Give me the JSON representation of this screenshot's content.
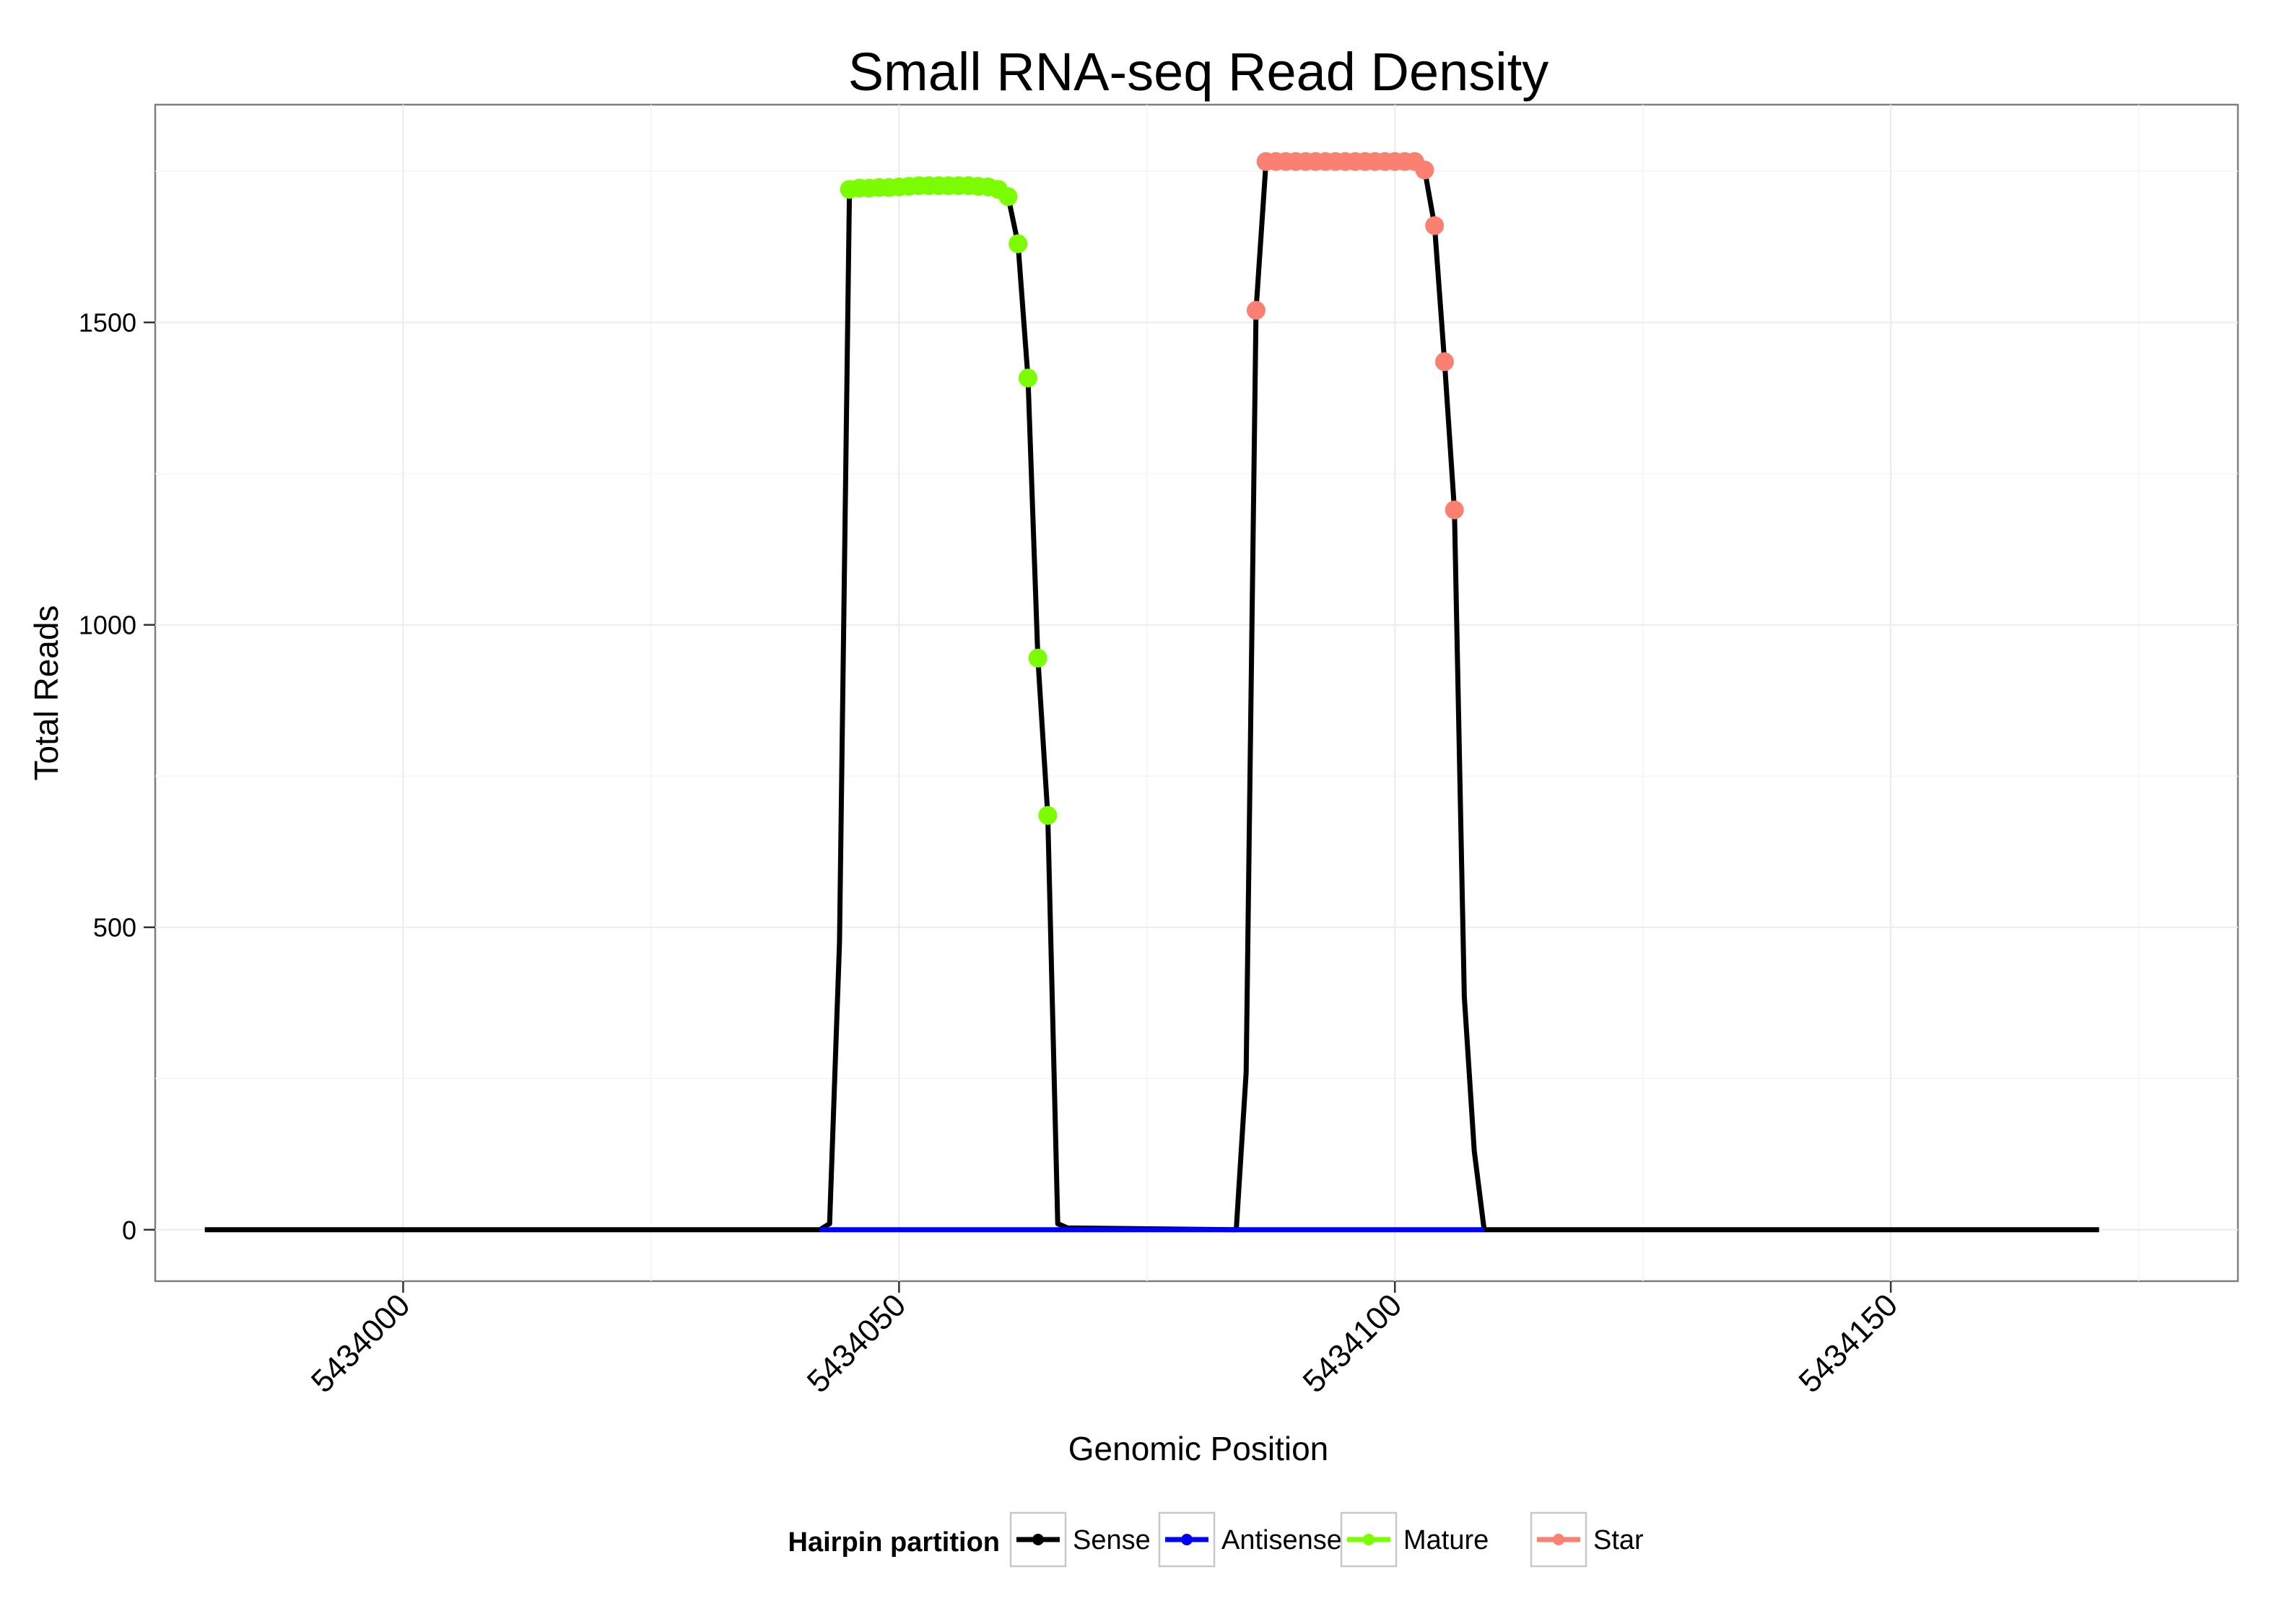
{
  "chart_data": {
    "type": "line",
    "title": "Small RNA-seq Read Density",
    "xlabel": "Genomic Position",
    "ylabel": "Total Reads",
    "xlim": [
      5433975,
      5434185
    ],
    "ylim": [
      -85,
      1860
    ],
    "x_ticks": [
      5434000,
      5434050,
      5434100,
      5434150
    ],
    "y_ticks": [
      0,
      500,
      1000,
      1500
    ],
    "grid": true,
    "legend": {
      "title": "Hairpin partition",
      "position": "bottom",
      "entries": [
        {
          "label": "Sense",
          "color": "#000000"
        },
        {
          "label": "Antisense",
          "color": "#0000ff"
        },
        {
          "label": "Mature",
          "color": "#7cfc00"
        },
        {
          "label": "Star",
          "color": "#fa8072"
        }
      ]
    },
    "series": [
      {
        "name": "Sense",
        "color": "#000000",
        "points": [
          [
            5433980,
            0
          ],
          [
            5434042,
            0
          ],
          [
            5434043,
            10
          ],
          [
            5434044,
            475
          ],
          [
            5434045,
            1720
          ],
          [
            5434046,
            1722
          ],
          [
            5434050,
            1724
          ],
          [
            5434055,
            1726
          ],
          [
            5434060,
            1724
          ],
          [
            5434061,
            1708
          ],
          [
            5434062,
            1630
          ],
          [
            5434063,
            1408
          ],
          [
            5434064,
            945
          ],
          [
            5434065,
            685
          ],
          [
            5434066,
            10
          ],
          [
            5434067,
            3
          ],
          [
            5434084,
            0
          ],
          [
            5434085,
            260
          ],
          [
            5434086,
            1520
          ],
          [
            5434087,
            1765
          ],
          [
            5434095,
            1766
          ],
          [
            5434102,
            1766
          ],
          [
            5434103,
            1752
          ],
          [
            5434104,
            1660
          ],
          [
            5434105,
            1435
          ],
          [
            5434106,
            1190
          ],
          [
            5434107,
            385
          ],
          [
            5434108,
            130
          ],
          [
            5434109,
            0
          ],
          [
            5434171,
            0
          ]
        ]
      },
      {
        "name": "Antisense",
        "color": "#0000ff",
        "points": [
          [
            5434042,
            0
          ],
          [
            5434109,
            0
          ]
        ]
      },
      {
        "name": "Mature",
        "color": "#7cfc00",
        "points": [
          [
            5434045,
            1720
          ],
          [
            5434046,
            1722
          ],
          [
            5434047,
            1722
          ],
          [
            5434048,
            1723
          ],
          [
            5434049,
            1723
          ],
          [
            5434050,
            1724
          ],
          [
            5434051,
            1725
          ],
          [
            5434052,
            1726
          ],
          [
            5434053,
            1726
          ],
          [
            5434054,
            1726
          ],
          [
            5434055,
            1726
          ],
          [
            5434056,
            1726
          ],
          [
            5434057,
            1726
          ],
          [
            5434058,
            1725
          ],
          [
            5434059,
            1724
          ],
          [
            5434060,
            1720
          ],
          [
            5434061,
            1708
          ],
          [
            5434062,
            1630
          ],
          [
            5434063,
            1408
          ],
          [
            5434064,
            945
          ],
          [
            5434065,
            685
          ]
        ]
      },
      {
        "name": "Star",
        "color": "#fa8072",
        "points": [
          [
            5434086,
            1520
          ],
          [
            5434087,
            1766
          ],
          [
            5434088,
            1766
          ],
          [
            5434089,
            1766
          ],
          [
            5434090,
            1766
          ],
          [
            5434091,
            1766
          ],
          [
            5434092,
            1766
          ],
          [
            5434093,
            1766
          ],
          [
            5434094,
            1766
          ],
          [
            5434095,
            1766
          ],
          [
            5434096,
            1766
          ],
          [
            5434097,
            1766
          ],
          [
            5434098,
            1766
          ],
          [
            5434099,
            1766
          ],
          [
            5434100,
            1766
          ],
          [
            5434101,
            1766
          ],
          [
            5434102,
            1766
          ],
          [
            5434103,
            1752
          ],
          [
            5434104,
            1660
          ],
          [
            5434105,
            1435
          ],
          [
            5434106,
            1190
          ]
        ]
      }
    ]
  }
}
